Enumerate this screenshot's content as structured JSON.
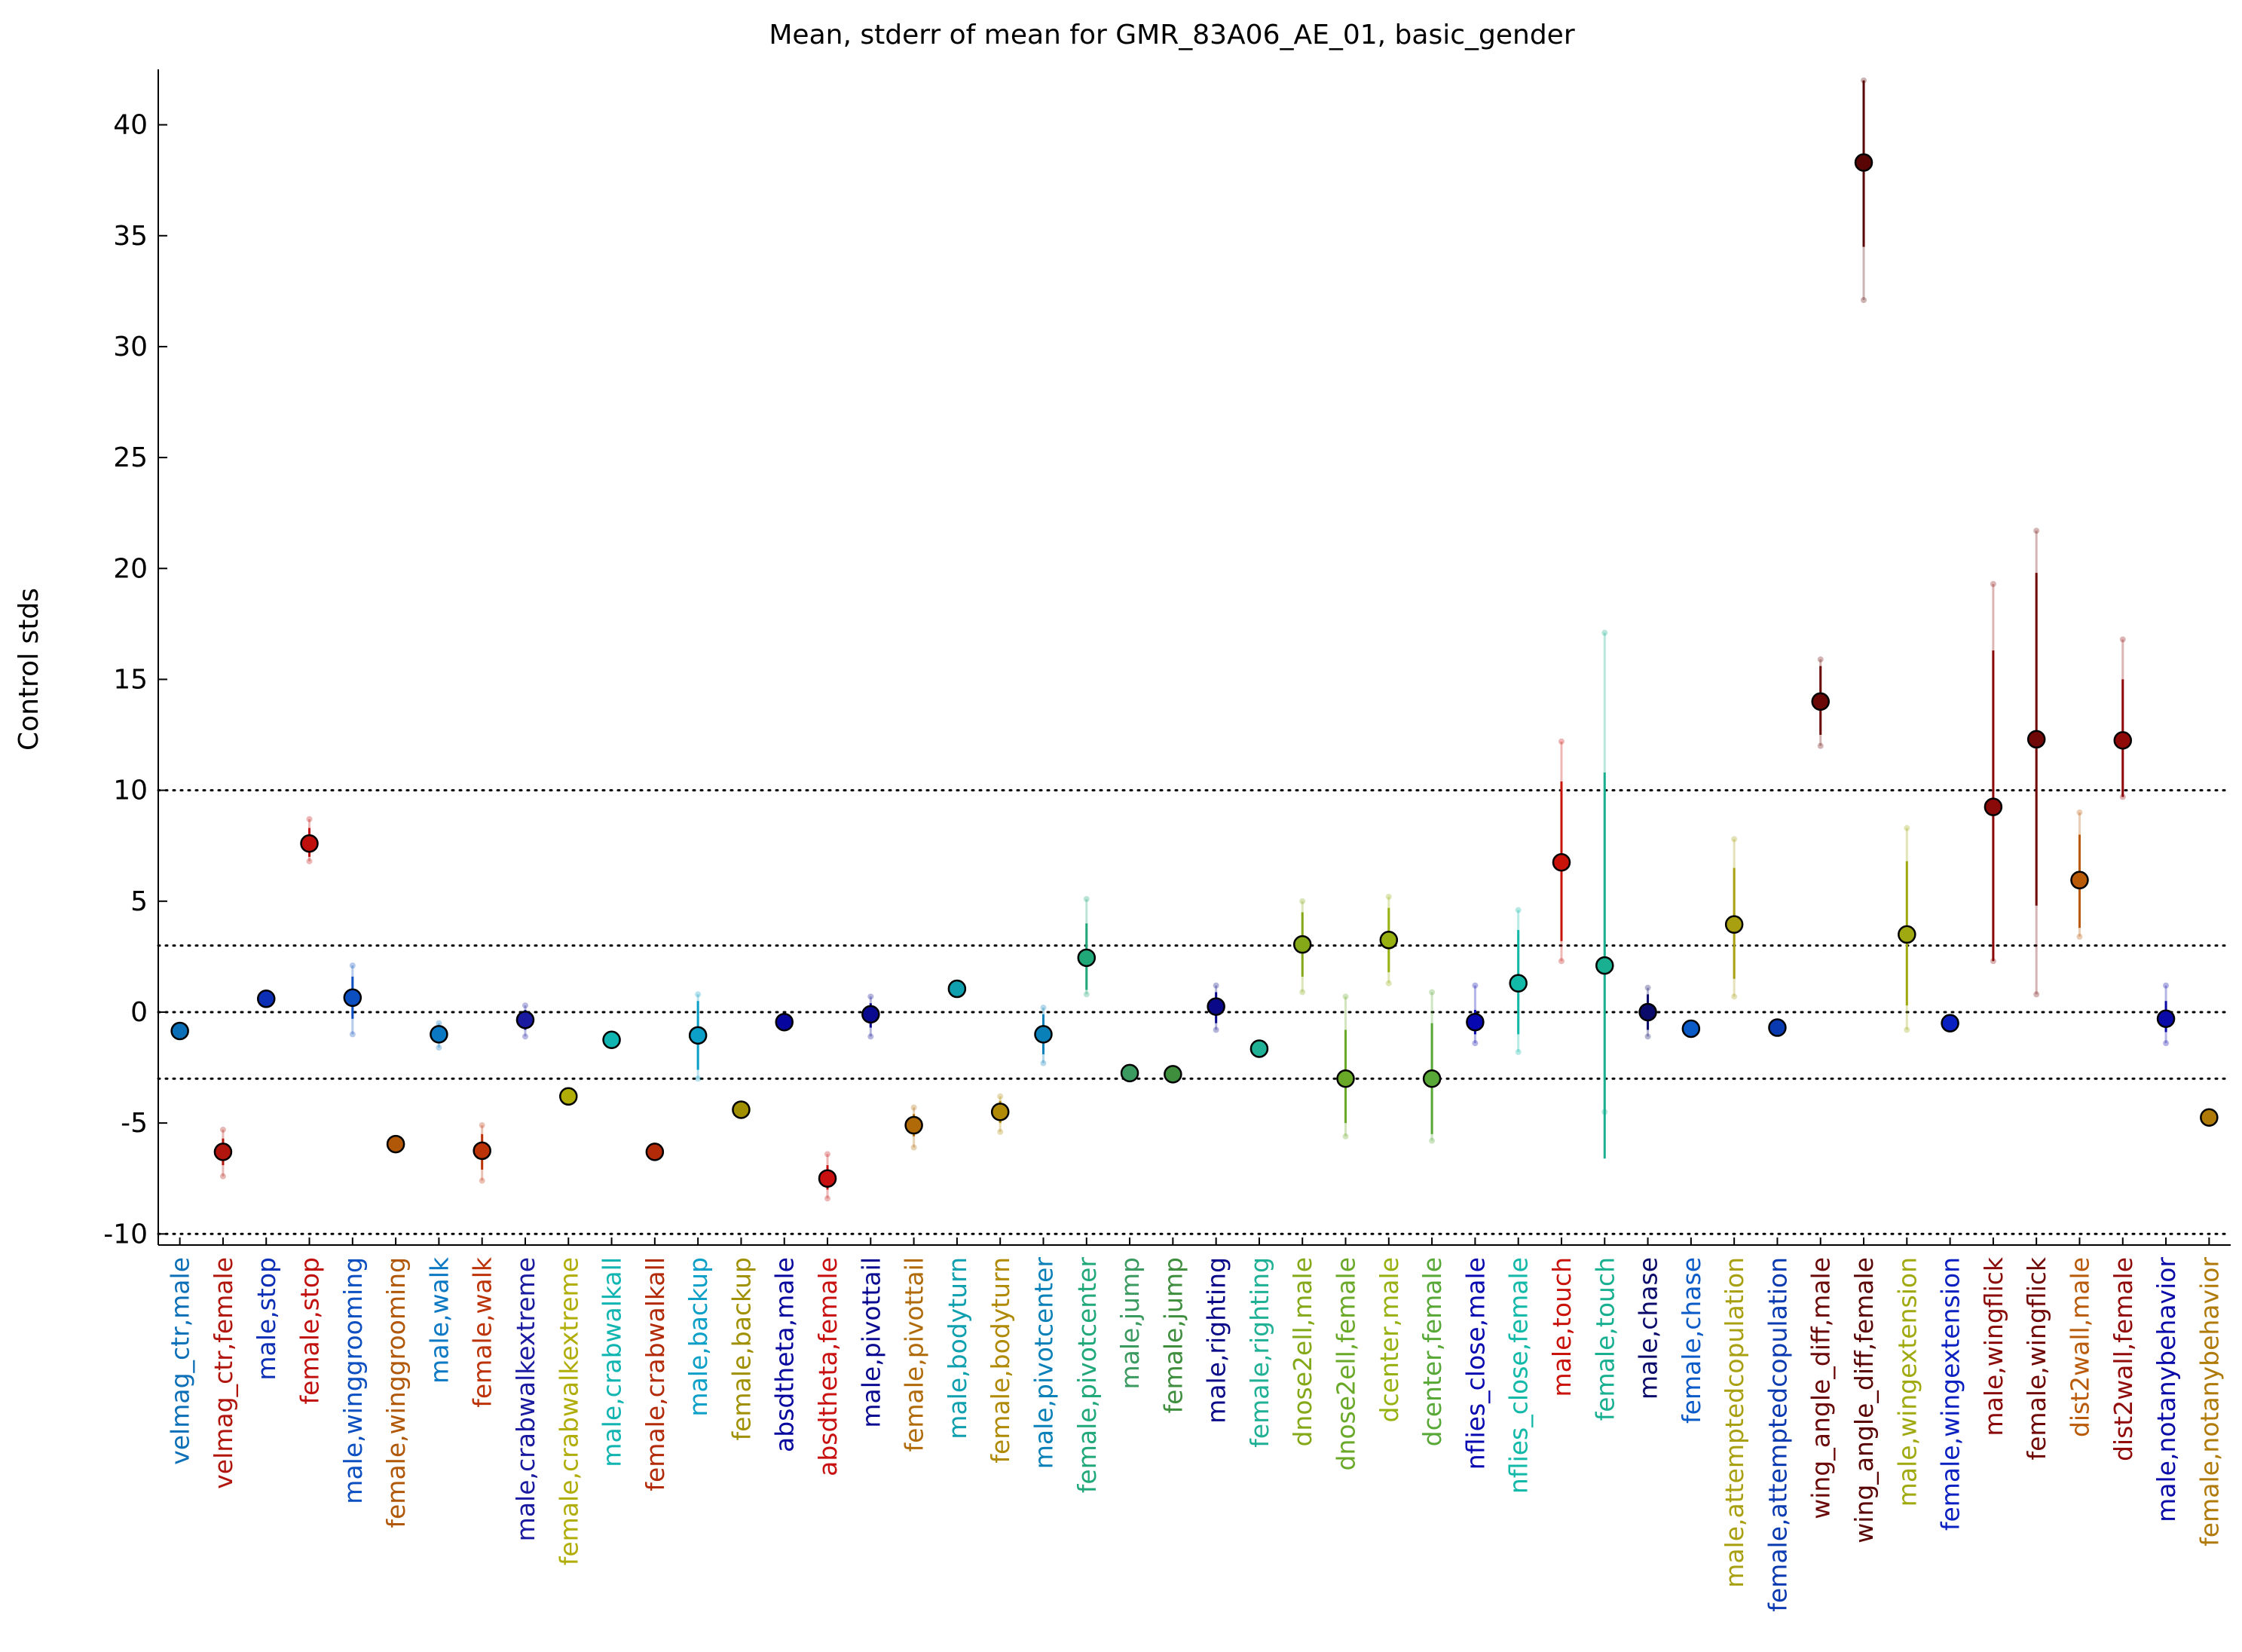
{
  "chart_data": {
    "type": "scatter",
    "title": "Mean, stderr of mean for GMR_83A06_AE_01, basic_gender",
    "xlabel": "",
    "ylabel": "Control stds",
    "ylim": [
      -10.5,
      42.5
    ],
    "yticks": [
      -10,
      -5,
      0,
      5,
      10,
      15,
      20,
      25,
      30,
      35,
      40
    ],
    "reference_lines": [
      -10,
      -3,
      0,
      3,
      10
    ],
    "reference_line_style": "dotted",
    "grid": false,
    "legend": "none",
    "marker_edge_color": "#000000",
    "categories": [
      "velmag_ctr,male",
      "velmag_ctr,female",
      "male,stop",
      "female,stop",
      "male,winggrooming",
      "female,winggrooming",
      "male,walk",
      "female,walk",
      "male,crabwalkextreme",
      "female,crabwalkextreme",
      "male,crabwalkall",
      "female,crabwalkall",
      "male,backup",
      "female,backup",
      "absdtheta,male",
      "absdtheta,female",
      "male,pivottail",
      "female,pivottail",
      "male,bodyturn",
      "female,bodyturn",
      "male,pivotcenter",
      "female,pivotcenter",
      "male,jump",
      "female,jump",
      "male,righting",
      "female,righting",
      "dnose2ell,male",
      "dnose2ell,female",
      "dcenter,male",
      "dcenter,female",
      "nflies_close,male",
      "nflies_close,female",
      "male,touch",
      "female,touch",
      "male,chase",
      "female,chase",
      "male,attemptedcopulation",
      "female,attemptedcopulation",
      "wing_angle_diff,male",
      "wing_angle_diff,female",
      "male,wingextension",
      "female,wingextension",
      "male,wingflick",
      "female,wingflick",
      "dist2wall,male",
      "dist2wall,female",
      "male,notanybehavior",
      "female,notanybehavior"
    ],
    "colors": [
      "#0b6fb7",
      "#b0160d",
      "#0c2fb5",
      "#c0100e",
      "#0c4fc0",
      "#b05808",
      "#0a78c2",
      "#bc3308",
      "#1a1aa0",
      "#b0ad07",
      "#10b4b0",
      "#b22a08",
      "#0ca0c8",
      "#a09000",
      "#06069e",
      "#c81010",
      "#0a0a90",
      "#b06a08",
      "#0fa0b0",
      "#b08a05",
      "#0a80b8",
      "#20a878",
      "#3a9a60",
      "#3e8e3e",
      "#0a0a88",
      "#20b095",
      "#85a818",
      "#6aa828",
      "#98b010",
      "#58a838",
      "#0808b0",
      "#12b8a8",
      "#c8120a",
      "#18b090",
      "#0a0a6a",
      "#0a5ac8",
      "#a8a010",
      "#0a3ab0",
      "#6a0808",
      "#5a0505",
      "#a0aa10",
      "#0a20c0",
      "#8a0a0a",
      "#700808",
      "#b85a08",
      "#900a0a",
      "#0a0aa8",
      "#b07a08"
    ],
    "values": [
      -0.85,
      -6.3,
      0.6,
      7.6,
      0.65,
      -5.95,
      -1.0,
      -6.25,
      -0.35,
      -3.8,
      -1.25,
      -6.3,
      -1.05,
      -4.4,
      -0.45,
      -7.5,
      -0.1,
      -5.1,
      1.05,
      -4.5,
      -1.0,
      2.45,
      -2.75,
      -2.8,
      0.25,
      -1.65,
      3.05,
      -3.0,
      3.25,
      -3.0,
      -0.45,
      1.3,
      6.75,
      2.1,
      0.0,
      -0.75,
      3.95,
      -0.7,
      14.0,
      38.3,
      3.5,
      -0.5,
      9.25,
      12.3,
      5.95,
      12.25,
      -0.3,
      -4.75
    ],
    "stderr_range": [
      [
        -0.85,
        -0.85
      ],
      [
        -6.9,
        -5.7
      ],
      [
        0.6,
        0.6
      ],
      [
        7.0,
        8.3
      ],
      [
        -0.3,
        1.6
      ],
      [
        -5.95,
        -5.95
      ],
      [
        -1.3,
        -0.7
      ],
      [
        -7.1,
        -5.5
      ],
      [
        -0.8,
        0.1
      ],
      [
        -3.8,
        -3.8
      ],
      [
        -1.25,
        -1.25
      ],
      [
        -6.3,
        -6.3
      ],
      [
        -2.6,
        0.5
      ],
      [
        -4.4,
        -4.4
      ],
      [
        -0.45,
        -0.45
      ],
      [
        -8.0,
        -6.9
      ],
      [
        -0.7,
        0.4
      ],
      [
        -5.6,
        -4.6
      ],
      [
        1.05,
        1.05
      ],
      [
        -5.0,
        -4.0
      ],
      [
        -1.9,
        -0.1
      ],
      [
        1.0,
        4.0
      ],
      [
        -2.75,
        -2.75
      ],
      [
        -2.8,
        -2.8
      ],
      [
        -0.5,
        0.9
      ],
      [
        -1.65,
        -1.65
      ],
      [
        1.6,
        4.5
      ],
      [
        -5.0,
        -0.8
      ],
      [
        1.8,
        4.7
      ],
      [
        -5.5,
        -0.5
      ],
      [
        -1.0,
        0.1
      ],
      [
        -1.0,
        3.7
      ],
      [
        3.2,
        10.4
      ],
      [
        -6.6,
        10.8
      ],
      [
        -0.8,
        0.8
      ],
      [
        -0.75,
        -0.75
      ],
      [
        1.5,
        6.5
      ],
      [
        -0.7,
        -0.7
      ],
      [
        12.5,
        15.6
      ],
      [
        34.5,
        42.0
      ],
      [
        0.3,
        6.8
      ],
      [
        -0.5,
        -0.5
      ],
      [
        2.3,
        16.3
      ],
      [
        4.8,
        19.8
      ],
      [
        3.8,
        8.0
      ],
      [
        9.7,
        15.0
      ],
      [
        -0.9,
        0.5
      ],
      [
        -4.75,
        -4.75
      ]
    ],
    "extent_range": [
      [
        -0.85,
        -0.85
      ],
      [
        -7.4,
        -5.3
      ],
      [
        0.6,
        0.6
      ],
      [
        6.8,
        8.7
      ],
      [
        -1.0,
        2.1
      ],
      [
        -5.95,
        -5.95
      ],
      [
        -1.6,
        -0.5
      ],
      [
        -7.6,
        -5.1
      ],
      [
        -1.1,
        0.3
      ],
      [
        -3.8,
        -3.8
      ],
      [
        -1.25,
        -1.25
      ],
      [
        -6.3,
        -6.3
      ],
      [
        -3.0,
        0.8
      ],
      [
        -4.4,
        -4.4
      ],
      [
        -0.45,
        -0.45
      ],
      [
        -8.4,
        -6.4
      ],
      [
        -1.1,
        0.7
      ],
      [
        -6.1,
        -4.3
      ],
      [
        1.05,
        1.05
      ],
      [
        -5.4,
        -3.8
      ],
      [
        -2.3,
        0.2
      ],
      [
        0.8,
        5.1
      ],
      [
        -2.75,
        -2.75
      ],
      [
        -2.8,
        -2.8
      ],
      [
        -0.8,
        1.2
      ],
      [
        -1.65,
        -1.65
      ],
      [
        0.9,
        5.0
      ],
      [
        -5.6,
        0.7
      ],
      [
        1.3,
        5.2
      ],
      [
        -5.8,
        0.9
      ],
      [
        -1.4,
        1.2
      ],
      [
        -1.8,
        4.6
      ],
      [
        2.3,
        12.2
      ],
      [
        -4.5,
        17.1
      ],
      [
        -1.1,
        1.1
      ],
      [
        -0.75,
        -0.75
      ],
      [
        0.7,
        7.8
      ],
      [
        -0.7,
        -0.7
      ],
      [
        12.0,
        15.9
      ],
      [
        32.1,
        42.0
      ],
      [
        -0.8,
        8.3
      ],
      [
        -0.5,
        -0.5
      ],
      [
        2.3,
        19.3
      ],
      [
        0.8,
        21.7
      ],
      [
        3.4,
        9.0
      ],
      [
        9.7,
        16.8
      ],
      [
        -1.4,
        1.2
      ],
      [
        -4.75,
        -4.75
      ]
    ]
  }
}
